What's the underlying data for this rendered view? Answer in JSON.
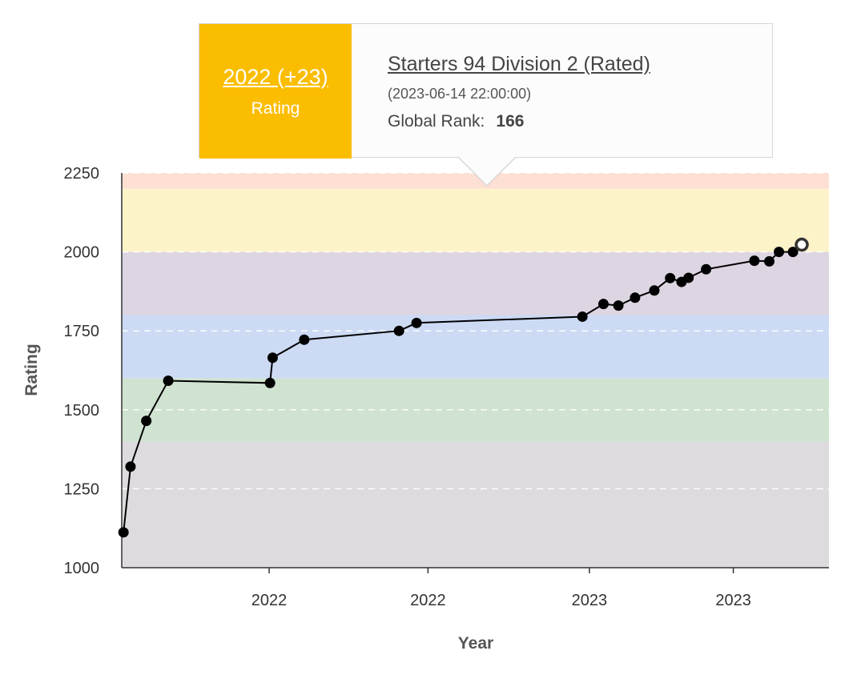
{
  "chart_data": {
    "type": "line",
    "xlabel": "Year",
    "ylabel": "Rating",
    "ylim": [
      1000,
      2250
    ],
    "yticks": [
      1000,
      1250,
      1500,
      1750,
      2000,
      2250
    ],
    "x_tick_labels": [
      "2022",
      "2022",
      "2023",
      "2023"
    ],
    "x_tick_dates": [
      "2022-01-01",
      "2022-07-01",
      "2023-01-01",
      "2023-06-14"
    ],
    "xlim": [
      "2021-07-17",
      "2023-10-01"
    ],
    "grid": true,
    "rating_bands": [
      {
        "from": 1000,
        "to": 1400,
        "color": "#dedbdf"
      },
      {
        "from": 1400,
        "to": 1600,
        "color": "#cfe3d0"
      },
      {
        "from": 1600,
        "to": 1800,
        "color": "#ccdaf4"
      },
      {
        "from": 1800,
        "to": 2000,
        "color": "#ddd5e2"
      },
      {
        "from": 2000,
        "to": 2200,
        "color": "#fdf3c8"
      },
      {
        "from": 2200,
        "to": 2250,
        "color": "#fde0d3"
      }
    ],
    "series": [
      {
        "color": "#000000",
        "points": [
          {
            "x": "2021-07-19",
            "y": 1112
          },
          {
            "x": "2021-07-27",
            "y": 1320
          },
          {
            "x": "2021-08-14",
            "y": 1465
          },
          {
            "x": "2021-09-08",
            "y": 1592
          },
          {
            "x": "2022-01-02",
            "y": 1585
          },
          {
            "x": "2022-01-05",
            "y": 1665
          },
          {
            "x": "2022-02-10",
            "y": 1722
          },
          {
            "x": "2022-05-29",
            "y": 1750
          },
          {
            "x": "2022-06-18",
            "y": 1775
          },
          {
            "x": "2022-12-24",
            "y": 1795
          },
          {
            "x": "2023-01-17",
            "y": 1835
          },
          {
            "x": "2023-02-03",
            "y": 1830
          },
          {
            "x": "2023-02-22",
            "y": 1855
          },
          {
            "x": "2023-03-16",
            "y": 1878
          },
          {
            "x": "2023-04-03",
            "y": 1917
          },
          {
            "x": "2023-04-16",
            "y": 1905
          },
          {
            "x": "2023-04-24",
            "y": 1918
          },
          {
            "x": "2023-05-14",
            "y": 1945
          },
          {
            "x": "2023-07-08",
            "y": 1972
          },
          {
            "x": "2023-07-25",
            "y": 1970
          },
          {
            "x": "2023-08-05",
            "y": 2000
          },
          {
            "x": "2023-08-21",
            "y": 2000
          },
          {
            "x": "2023-08-31",
            "y": 2023
          }
        ],
        "highlighted_index": 22
      }
    ]
  },
  "tooltip": {
    "year_label": "2022 (+23)",
    "sub_label": "Rating",
    "contest_title": "Starters 94 Division 2 (Rated)",
    "date": "(2023-06-14 22:00:00)",
    "rank_label": "Global Rank:",
    "rank_value": "166",
    "accent_color": "#fbbd00"
  }
}
